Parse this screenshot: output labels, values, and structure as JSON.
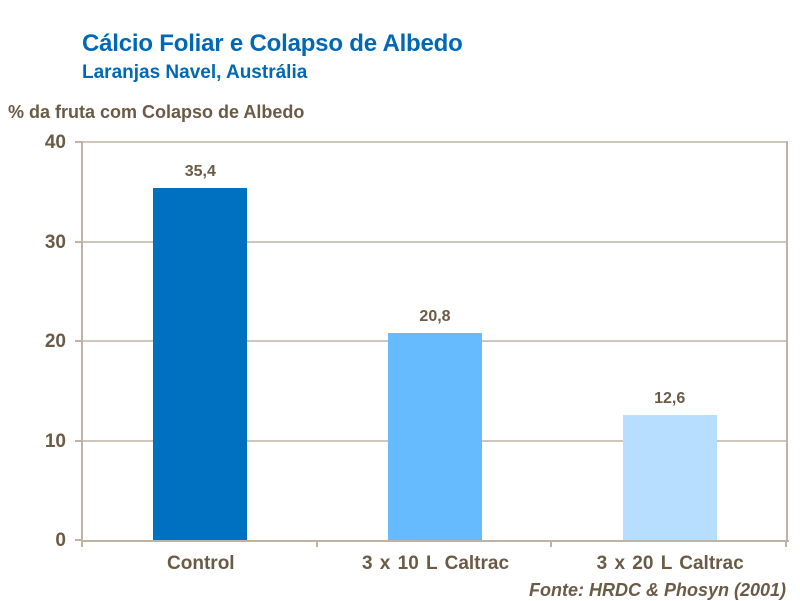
{
  "chart_data": {
    "type": "bar",
    "title": "Cálcio Foliar e Colapso de Albedo",
    "subtitle": "Laranjas Navel, Austrália",
    "xlabel": "",
    "ylabel": "% da fruta com Colapso de Albedo",
    "categories": [
      "Control",
      "3 x 10 L  Caltrac",
      "3 x 20 L  Caltrac"
    ],
    "values": [
      35.4,
      20.8,
      12.6
    ],
    "value_labels": [
      "35,4",
      "20,8",
      "12,6"
    ],
    "bar_colors": [
      "#0070c0",
      "#66bbff",
      "#b8deff"
    ],
    "ylim": [
      0,
      40
    ],
    "yticks": [
      "0",
      "10",
      "20",
      "30",
      "40"
    ],
    "grid": true,
    "legend": null,
    "source": "Fonte: HRDC & Phosyn (2001)"
  }
}
